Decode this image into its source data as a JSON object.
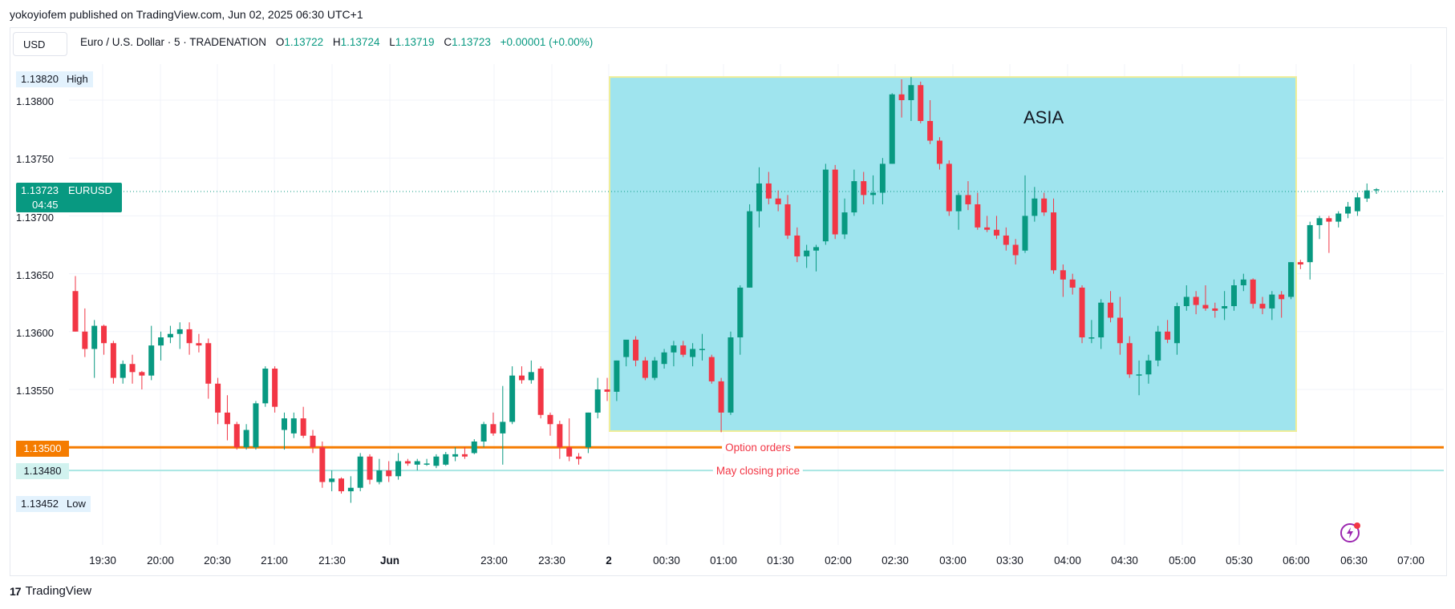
{
  "publisher_line": "yokoyiofem published on TradingView.com, Jun 02, 2025 06:30 UTC+1",
  "currency_button": "USD",
  "legend": {
    "symbol": "Euro / U.S. Dollar · 5 · TRADENATION",
    "o_label": "O",
    "o": "1.13722",
    "h_label": "H",
    "h": "1.13724",
    "l_label": "L",
    "l": "1.13719",
    "c_label": "C",
    "c": "1.13723",
    "change": "+0.00001 (+0.00%)"
  },
  "y_axis": {
    "high_value": "1.13820",
    "high_label": "High",
    "ticks": [
      "1.13800",
      "1.13750",
      "1.13700",
      "1.13650",
      "1.13600",
      "1.13550"
    ],
    "low_value": "1.13452",
    "low_label": "Low",
    "current_price": "1.13723",
    "current_symbol": "EURUSD",
    "countdown": "04:45",
    "orange_level": "1.13500",
    "teal_level": "1.13480"
  },
  "annotations": {
    "box_label": "ASIA",
    "orange_line_label": "Option orders",
    "teal_line_label": "May closing price"
  },
  "x_axis": {
    "ticks": [
      "19:30",
      "20:00",
      "20:30",
      "21:00",
      "21:30",
      "Jun",
      "23:00",
      "23:30",
      "2",
      "00:30",
      "01:00",
      "01:30",
      "02:00",
      "02:30",
      "03:00",
      "03:30",
      "04:00",
      "04:30",
      "05:00",
      "05:30",
      "06:00",
      "06:30",
      "07:00"
    ]
  },
  "footer_brand": "TradingView",
  "colors": {
    "up": "#089981",
    "down": "#f23645",
    "box_fill": "#9fe4ee",
    "box_border": "#f0ee98",
    "orange_line": "#f57c00",
    "teal_line": "#a8e6e2"
  },
  "chart_data": {
    "type": "candlestick",
    "title": "Euro / U.S. Dollar · 5 · TRADENATION",
    "ylim": [
      1.1341,
      1.13845
    ],
    "horizontal_lines": [
      {
        "value": 1.135,
        "label": "Option orders"
      },
      {
        "value": 1.1348,
        "label": "May closing price"
      }
    ],
    "rectangles": [
      {
        "label": "ASIA",
        "y_top": 1.1382,
        "y_bottom": 1.13514
      }
    ],
    "candles": [
      [
        1.13635,
        1.13648,
        1.136,
        1.136
      ],
      [
        1.136,
        1.1362,
        1.13578,
        1.13585
      ],
      [
        1.13585,
        1.1361,
        1.1356,
        1.13605
      ],
      [
        1.13605,
        1.13606,
        1.1358,
        1.1359
      ],
      [
        1.1359,
        1.13592,
        1.13555,
        1.1356
      ],
      [
        1.1356,
        1.13575,
        1.13555,
        1.13572
      ],
      [
        1.13572,
        1.1358,
        1.13555,
        1.13565
      ],
      [
        1.13565,
        1.13566,
        1.1355,
        1.13562
      ],
      [
        1.13562,
        1.13605,
        1.13558,
        1.13588
      ],
      [
        1.13588,
        1.136,
        1.13575,
        1.13595
      ],
      [
        1.13595,
        1.13605,
        1.1359,
        1.13598
      ],
      [
        1.13598,
        1.13608,
        1.13585,
        1.13602
      ],
      [
        1.13602,
        1.13608,
        1.1358,
        1.1359
      ],
      [
        1.1359,
        1.13598,
        1.13582,
        1.13588
      ],
      [
        1.1359,
        1.13594,
        1.13542,
        1.13555
      ],
      [
        1.13555,
        1.1356,
        1.1352,
        1.1353
      ],
      [
        1.1353,
        1.13545,
        1.13506,
        1.1352
      ],
      [
        1.1352,
        1.13522,
        1.13498,
        1.135
      ],
      [
        1.135,
        1.1352,
        1.13498,
        1.13515
      ],
      [
        1.135,
        1.1354,
        1.13498,
        1.13538
      ],
      [
        1.13538,
        1.1357,
        1.13535,
        1.13568
      ],
      [
        1.13568,
        1.1357,
        1.1353,
        1.13535
      ],
      [
        1.13515,
        1.1353,
        1.13498,
        1.13525
      ],
      [
        1.13512,
        1.1353,
        1.13508,
        1.13525
      ],
      [
        1.13525,
        1.13535,
        1.13508,
        1.1351
      ],
      [
        1.1351,
        1.13515,
        1.13495,
        1.135
      ],
      [
        1.135,
        1.13505,
        1.13465,
        1.1347
      ],
      [
        1.1347,
        1.1348,
        1.13462,
        1.13473
      ],
      [
        1.13473,
        1.13474,
        1.1346,
        1.13462
      ],
      [
        1.13462,
        1.13475,
        1.13452,
        1.13465
      ],
      [
        1.13465,
        1.13495,
        1.13462,
        1.13492
      ],
      [
        1.13492,
        1.13494,
        1.13468,
        1.13472
      ],
      [
        1.1347,
        1.1349,
        1.13468,
        1.1348
      ],
      [
        1.1348,
        1.13488,
        1.1347,
        1.13475
      ],
      [
        1.13475,
        1.13495,
        1.13472,
        1.13488
      ],
      [
        1.13488,
        1.1349,
        1.13484,
        1.13486
      ],
      [
        1.13485,
        1.1349,
        1.1348,
        1.13488
      ],
      [
        1.13485,
        1.1349,
        1.13484,
        1.13486
      ],
      [
        1.13484,
        1.13494,
        1.13482,
        1.13492
      ],
      [
        1.13485,
        1.13496,
        1.13484,
        1.13494
      ],
      [
        1.13492,
        1.135,
        1.13488,
        1.13494
      ],
      [
        1.13494,
        1.135,
        1.1349,
        1.13492
      ],
      [
        1.13495,
        1.13507,
        1.13494,
        1.13505
      ],
      [
        1.13505,
        1.13522,
        1.135,
        1.1352
      ],
      [
        1.1352,
        1.1353,
        1.1351,
        1.13512
      ],
      [
        1.13512,
        1.13553,
        1.13485,
        1.13522
      ],
      [
        1.13522,
        1.1357,
        1.1352,
        1.13562
      ],
      [
        1.13562,
        1.1357,
        1.13555,
        1.13558
      ],
      [
        1.13558,
        1.13575,
        1.13555,
        1.13565
      ],
      [
        1.13568,
        1.1357,
        1.13525,
        1.13528
      ],
      [
        1.13528,
        1.1353,
        1.1351,
        1.1352
      ],
      [
        1.1352,
        1.13523,
        1.1349,
        1.135
      ],
      [
        1.135,
        1.13525,
        1.13488,
        1.13492
      ],
      [
        1.13492,
        1.13495,
        1.13485,
        1.1349
      ],
      [
        1.135,
        1.1353,
        1.13495,
        1.1353
      ],
      [
        1.1353,
        1.1356,
        1.13525,
        1.1355
      ],
      [
        1.1355,
        1.1356,
        1.1354,
        1.13548
      ],
      [
        1.13548,
        1.13575,
        1.1354,
        1.13575
      ],
      [
        1.13578,
        1.13592,
        1.1357,
        1.13593
      ],
      [
        1.13593,
        1.13596,
        1.1357,
        1.13575
      ],
      [
        1.13575,
        1.13578,
        1.13558,
        1.1356
      ],
      [
        1.1356,
        1.13578,
        1.13558,
        1.13575
      ],
      [
        1.13572,
        1.13585,
        1.13568,
        1.13582
      ],
      [
        1.13582,
        1.13592,
        1.1357,
        1.13588
      ],
      [
        1.13588,
        1.13592,
        1.13578,
        1.1358
      ],
      [
        1.13578,
        1.1359,
        1.1357,
        1.13585
      ],
      [
        1.13585,
        1.13598,
        1.13575,
        1.13585
      ],
      [
        1.13578,
        1.1358,
        1.13555,
        1.13557
      ],
      [
        1.13557,
        1.1356,
        1.13513,
        1.1353
      ],
      [
        1.1353,
        1.136,
        1.13528,
        1.13595
      ],
      [
        1.13595,
        1.1364,
        1.1358,
        1.13638
      ],
      [
        1.13638,
        1.1371,
        1.13638,
        1.13704
      ],
      [
        1.13704,
        1.13742,
        1.1369,
        1.13728
      ],
      [
        1.13728,
        1.13738,
        1.1371,
        1.13715
      ],
      [
        1.13715,
        1.13722,
        1.13704,
        1.1371
      ],
      [
        1.1371,
        1.13718,
        1.1368,
        1.13683
      ],
      [
        1.13683,
        1.1369,
        1.1366,
        1.13665
      ],
      [
        1.13665,
        1.13675,
        1.13655,
        1.1367
      ],
      [
        1.1367,
        1.13675,
        1.13652,
        1.13673
      ],
      [
        1.13678,
        1.13745,
        1.13675,
        1.1374
      ],
      [
        1.1374,
        1.13744,
        1.1368,
        1.13684
      ],
      [
        1.13684,
        1.13715,
        1.1368,
        1.13703
      ],
      [
        1.13703,
        1.1374,
        1.137,
        1.1373
      ],
      [
        1.1373,
        1.13738,
        1.1371,
        1.13718
      ],
      [
        1.13718,
        1.13735,
        1.1371,
        1.1372
      ],
      [
        1.1372,
        1.1375,
        1.1371,
        1.13745
      ],
      [
        1.13745,
        1.13806,
        1.13745,
        1.13805
      ],
      [
        1.13805,
        1.13818,
        1.13785,
        1.138
      ],
      [
        1.138,
        1.1382,
        1.13782,
        1.13813
      ],
      [
        1.13813,
        1.13816,
        1.1378,
        1.13782
      ],
      [
        1.13782,
        1.138,
        1.13762,
        1.13765
      ],
      [
        1.13765,
        1.13768,
        1.1374,
        1.13745
      ],
      [
        1.13745,
        1.13748,
        1.137,
        1.13704
      ],
      [
        1.13704,
        1.1372,
        1.13688,
        1.13718
      ],
      [
        1.13718,
        1.1373,
        1.13705,
        1.1371
      ],
      [
        1.1371,
        1.1372,
        1.13688,
        1.1369
      ],
      [
        1.1369,
        1.137,
        1.13686,
        1.13688
      ],
      [
        1.13688,
        1.137,
        1.1368,
        1.13683
      ],
      [
        1.13683,
        1.1369,
        1.1367,
        1.13675
      ],
      [
        1.13675,
        1.1368,
        1.13658,
        1.13666
      ],
      [
        1.1367,
        1.13735,
        1.13668,
        1.137
      ],
      [
        1.137,
        1.13725,
        1.13695,
        1.13715
      ],
      [
        1.13715,
        1.1372,
        1.137,
        1.13703
      ],
      [
        1.13703,
        1.13715,
        1.1365,
        1.13653
      ],
      [
        1.13653,
        1.13658,
        1.1363,
        1.13645
      ],
      [
        1.13645,
        1.1365,
        1.13632,
        1.13638
      ],
      [
        1.13638,
        1.1364,
        1.1359,
        1.13595
      ],
      [
        1.13595,
        1.1361,
        1.1359,
        1.13595
      ],
      [
        1.13595,
        1.13628,
        1.13585,
        1.13625
      ],
      [
        1.13625,
        1.13635,
        1.13608,
        1.13612
      ],
      [
        1.13612,
        1.1363,
        1.1358,
        1.1359
      ],
      [
        1.1359,
        1.13596,
        1.1356,
        1.13563
      ],
      [
        1.13563,
        1.13575,
        1.13545,
        1.13563
      ],
      [
        1.13563,
        1.1358,
        1.13555,
        1.13575
      ],
      [
        1.13575,
        1.13605,
        1.1357,
        1.136
      ],
      [
        1.136,
        1.1361,
        1.1359,
        1.13593
      ],
      [
        1.1359,
        1.13625,
        1.1358,
        1.13622
      ],
      [
        1.13622,
        1.1364,
        1.13618,
        1.1363
      ],
      [
        1.1363,
        1.13635,
        1.13615,
        1.13623
      ],
      [
        1.13623,
        1.1364,
        1.13618,
        1.1362
      ],
      [
        1.1362,
        1.13625,
        1.13612,
        1.13618
      ],
      [
        1.1362,
        1.13635,
        1.1361,
        1.13622
      ],
      [
        1.13622,
        1.13645,
        1.13618,
        1.1364
      ],
      [
        1.1364,
        1.1365,
        1.13635,
        1.13645
      ],
      [
        1.13645,
        1.13646,
        1.1362,
        1.13624
      ],
      [
        1.13624,
        1.1363,
        1.13615,
        1.1362
      ],
      [
        1.1362,
        1.13635,
        1.1361,
        1.13632
      ],
      [
        1.13632,
        1.13635,
        1.13612,
        1.13628
      ],
      [
        1.1363,
        1.1366,
        1.13628,
        1.1366
      ],
      [
        1.1366,
        1.13662,
        1.13654,
        1.13658
      ],
      [
        1.1366,
        1.13695,
        1.13645,
        1.13692
      ],
      [
        1.13692,
        1.137,
        1.1368,
        1.13698
      ],
      [
        1.13698,
        1.137,
        1.13668,
        1.13695
      ],
      [
        1.13695,
        1.13704,
        1.1369,
        1.13702
      ],
      [
        1.13702,
        1.13712,
        1.13698,
        1.13708
      ],
      [
        1.13704,
        1.1372,
        1.137,
        1.13716
      ],
      [
        1.13715,
        1.13728,
        1.13712,
        1.13722
      ],
      [
        1.13722,
        1.13724,
        1.13719,
        1.13723
      ]
    ]
  }
}
